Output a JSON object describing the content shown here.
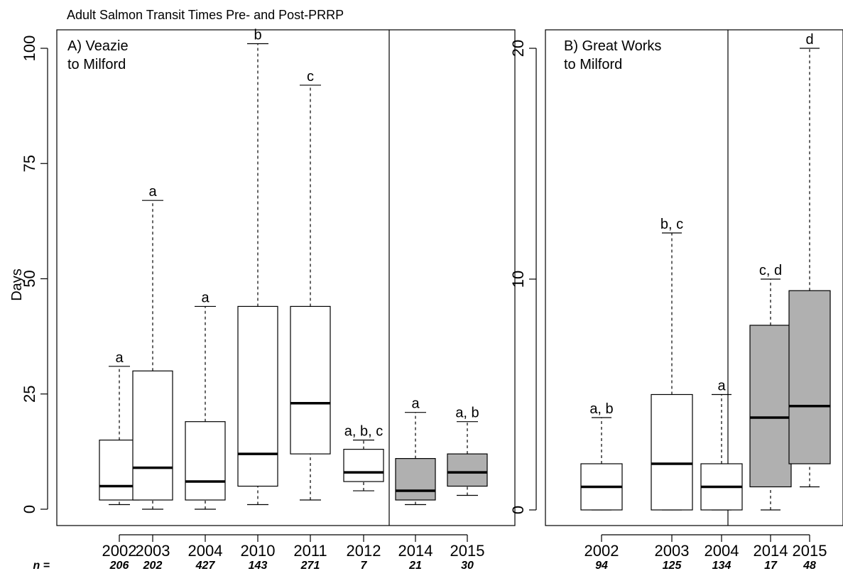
{
  "title": "Adult Salmon Transit Times Pre- and Post-PRRP",
  "n_prefix": "n =",
  "chart_data": [
    {
      "type": "box",
      "panel_title_lines": [
        "A) Veazie",
        "to Milford"
      ],
      "ylabel": "Days",
      "ylim": [
        0,
        100
      ],
      "yticks": [
        "0",
        "25",
        "50",
        "75",
        "100"
      ],
      "grid": false,
      "categories": [
        "2002",
        "2003",
        "2004",
        "2010",
        "2011",
        "2012",
        "2014",
        "2015"
      ],
      "n": [
        "206",
        "202",
        "427",
        "143",
        "271",
        "7",
        "21",
        "30"
      ],
      "post_prrp": [
        false,
        false,
        false,
        false,
        false,
        false,
        true,
        true
      ],
      "boxes": [
        {
          "min": 1,
          "q1": 2,
          "median": 5,
          "q3": 15,
          "max": 31,
          "letters": "a"
        },
        {
          "min": 0,
          "q1": 2,
          "median": 9,
          "q3": 30,
          "max": 67,
          "letters": "a"
        },
        {
          "min": 0,
          "q1": 2,
          "median": 6,
          "q3": 19,
          "max": 44,
          "letters": "a"
        },
        {
          "min": 1,
          "q1": 5,
          "median": 12,
          "q3": 44,
          "max": 101,
          "letters": "b"
        },
        {
          "min": 2,
          "q1": 12,
          "median": 23,
          "q3": 44,
          "max": 92,
          "letters": "c"
        },
        {
          "min": 4,
          "q1": 6,
          "median": 8,
          "q3": 13,
          "max": 15,
          "letters": "a, b, c"
        },
        {
          "min": 1,
          "q1": 2,
          "median": 4,
          "q3": 11,
          "max": 21,
          "letters": "a"
        },
        {
          "min": 3,
          "q1": 5,
          "median": 8,
          "q3": 12,
          "max": 19,
          "letters": "a, b"
        }
      ]
    },
    {
      "type": "box",
      "panel_title_lines": [
        "B) Great Works",
        "to Milford"
      ],
      "ylabel": "",
      "ylim": [
        0,
        20
      ],
      "yticks": [
        "0",
        "10",
        "20"
      ],
      "grid": false,
      "categories": [
        "2002",
        "2003",
        "2004",
        "2014",
        "2015"
      ],
      "n": [
        "94",
        "125",
        "134",
        "17",
        "48"
      ],
      "post_prrp": [
        false,
        false,
        false,
        true,
        true
      ],
      "boxes": [
        {
          "min": 0,
          "q1": 0,
          "median": 1,
          "q3": 2,
          "max": 4,
          "letters": "a, b"
        },
        {
          "min": 0,
          "q1": 0,
          "median": 2,
          "q3": 5,
          "max": 12,
          "letters": "b, c"
        },
        {
          "min": 0,
          "q1": 0,
          "median": 1,
          "q3": 2,
          "max": 5,
          "letters": "a"
        },
        {
          "min": 0,
          "q1": 1,
          "median": 4,
          "q3": 8,
          "max": 10,
          "letters": "c, d"
        },
        {
          "min": 1,
          "q1": 2,
          "median": 4.5,
          "q3": 9.5,
          "max": 20,
          "letters": "d"
        }
      ]
    }
  ],
  "colors": {
    "pre_fill": "#ffffff",
    "post_fill": "#b0b0b0",
    "stroke": "#000000",
    "background": "#ffffff"
  }
}
